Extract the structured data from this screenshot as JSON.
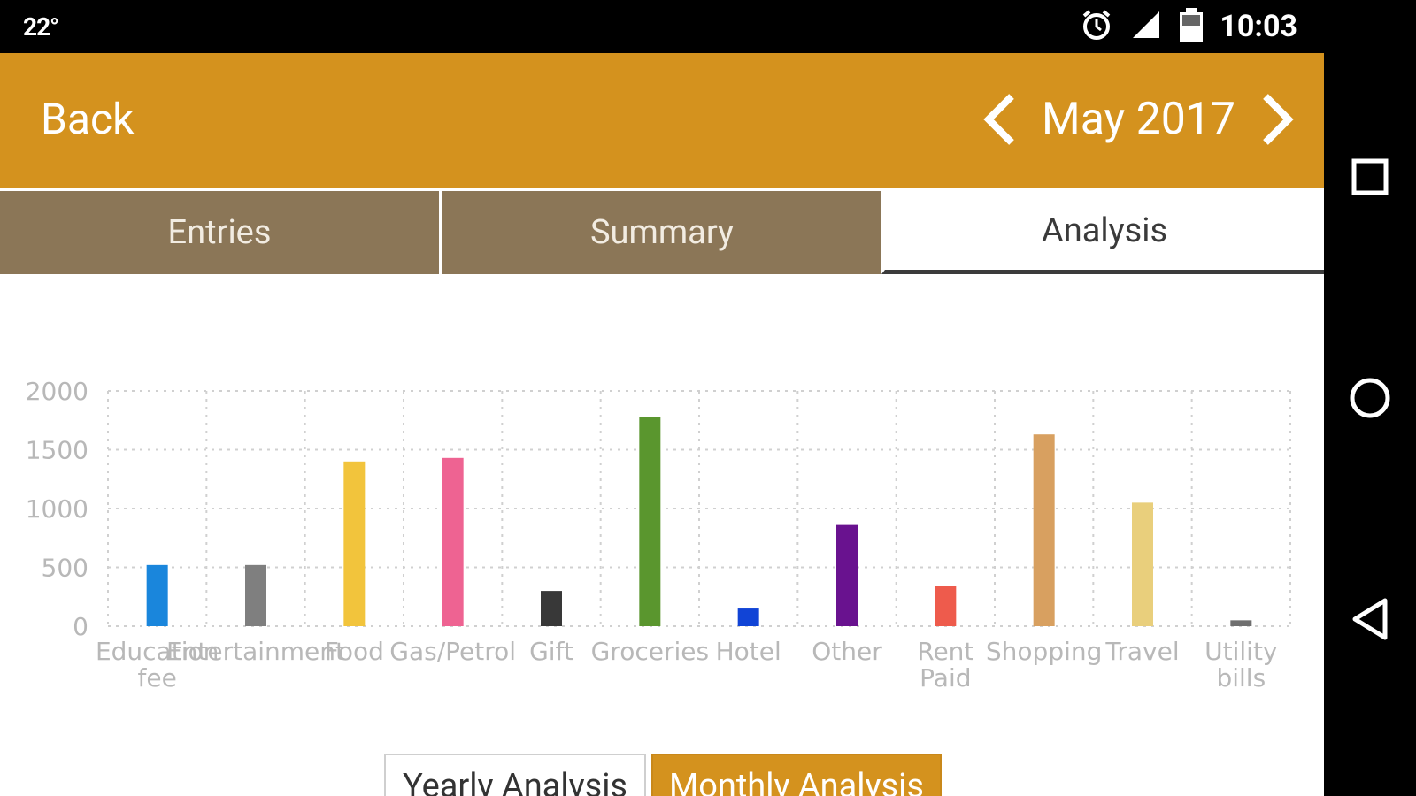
{
  "status_bar": {
    "temperature": "22°",
    "time": "10:03"
  },
  "header": {
    "back_label": "Back",
    "month_label": "May 2017",
    "accent_color": "#d4921e"
  },
  "tabs": [
    {
      "label": "Entries",
      "active": false
    },
    {
      "label": "Summary",
      "active": false
    },
    {
      "label": "Analysis",
      "active": true
    }
  ],
  "chart_data": {
    "type": "bar",
    "categories": [
      "Education fee",
      "Entertainment",
      "Food",
      "Gas/Petrol",
      "Gift",
      "Groceries",
      "Hotel",
      "Other",
      "Rent Paid",
      "Shopping",
      "Travel",
      "Utility bills"
    ],
    "values": [
      520,
      520,
      1400,
      1430,
      300,
      1780,
      150,
      860,
      340,
      1630,
      1050,
      50
    ],
    "colors": [
      "#1a86dc",
      "#7f7f7f",
      "#f2c43c",
      "#ee6392",
      "#383838",
      "#5a962e",
      "#1144d6",
      "#69128f",
      "#ee5b4c",
      "#d8a060",
      "#e9cf7c",
      "#6f6f6f"
    ],
    "ylim": [
      0,
      2000
    ],
    "yticks": [
      "0",
      "500",
      "1000",
      "1500",
      "2000"
    ],
    "grid": true
  },
  "toggles": {
    "yearly_label": "Yearly Analysis",
    "monthly_label": "Monthly Analysis",
    "selected": "monthly"
  }
}
